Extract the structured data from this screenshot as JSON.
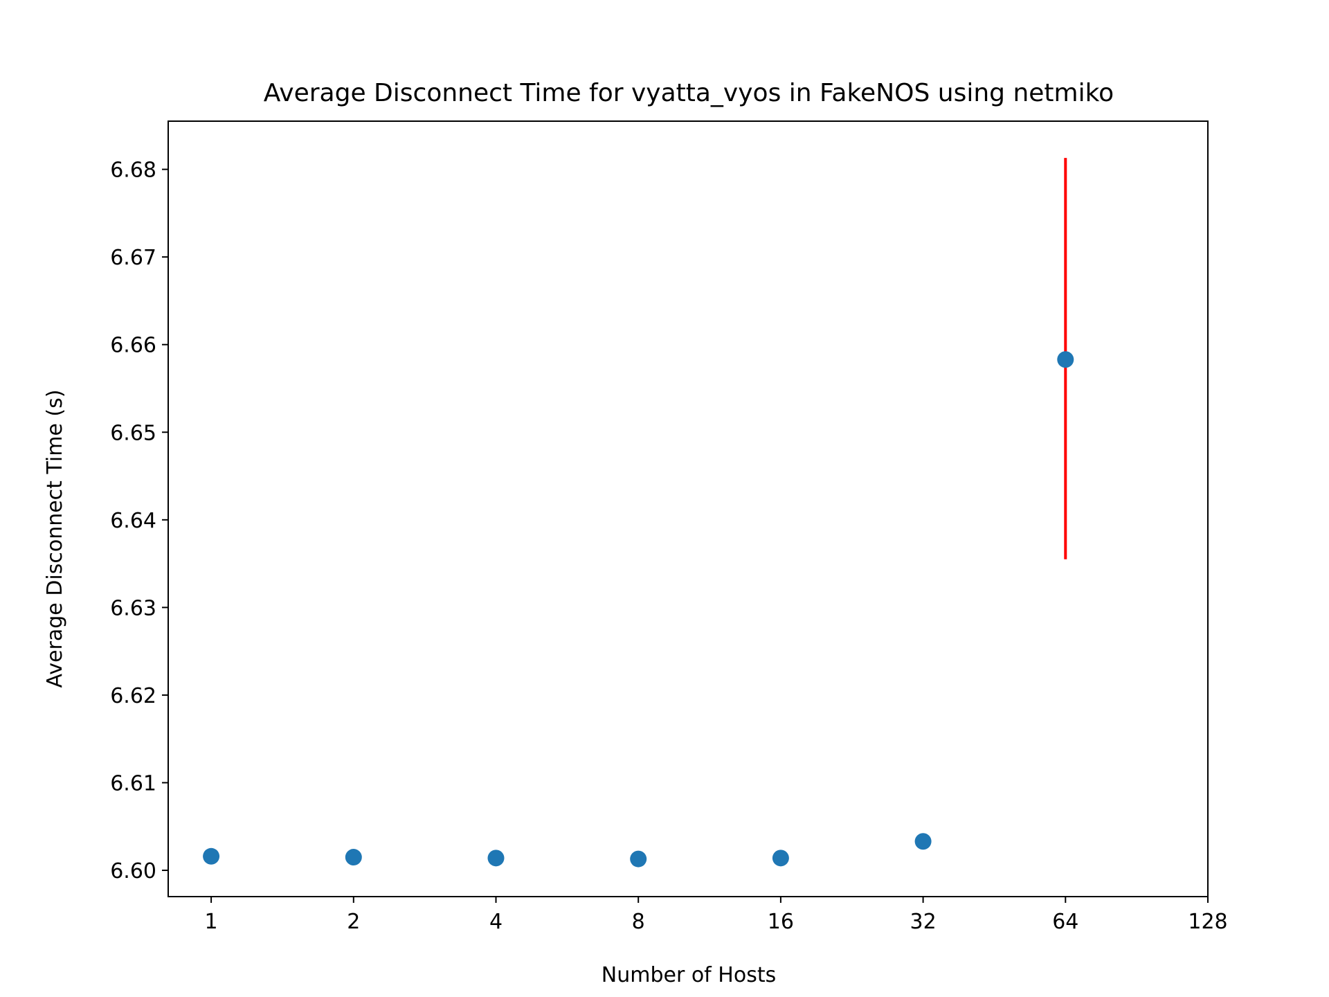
{
  "chart_data": {
    "type": "scatter",
    "title": "Average Disconnect Time for vyatta_vyos in FakeNOS using netmiko",
    "xlabel": "Number of Hosts",
    "ylabel": "Average Disconnect Time (s)",
    "x_scale": "log2",
    "x_ticks": [
      1,
      2,
      4,
      8,
      16,
      32,
      64,
      128
    ],
    "x_tick_labels": [
      "1",
      "2",
      "4",
      "8",
      "16",
      "32",
      "64",
      "128"
    ],
    "y_ticks": [
      6.6,
      6.61,
      6.62,
      6.63,
      6.64,
      6.65,
      6.66,
      6.67,
      6.68
    ],
    "y_tick_labels": [
      "6.60",
      "6.61",
      "6.62",
      "6.63",
      "6.64",
      "6.65",
      "6.66",
      "6.67",
      "6.68"
    ],
    "xlim": [
      0.8112,
      128
    ],
    "ylim": [
      6.597,
      6.6855
    ],
    "grid": false,
    "legend": "none",
    "colors": {
      "marker": "#1f77b4",
      "errorbar": "#ff0000"
    },
    "points": [
      {
        "x": 1,
        "y": 6.6016
      },
      {
        "x": 2,
        "y": 6.6015
      },
      {
        "x": 4,
        "y": 6.6014
      },
      {
        "x": 8,
        "y": 6.6013
      },
      {
        "x": 16,
        "y": 6.6014
      },
      {
        "x": 32,
        "y": 6.6033
      },
      {
        "x": 64,
        "y": 6.6583,
        "err_low": 6.6355,
        "err_high": 6.6813
      }
    ]
  }
}
